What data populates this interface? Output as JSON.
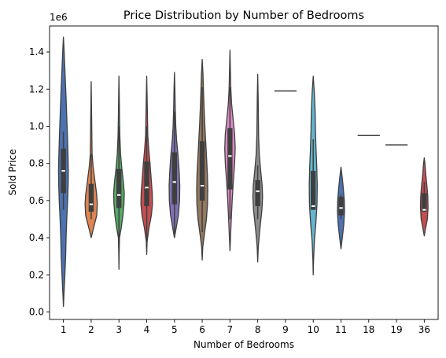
{
  "chart_data": {
    "type": "violin",
    "title": "Price Distribution by Number of Bedrooms",
    "xlabel": "Number of Bedrooms",
    "ylabel": "Sold Price",
    "y_multiplier_label": "1e6",
    "ylim": [
      -0.04,
      1.54
    ],
    "yticks": [
      0.0,
      0.2,
      0.4,
      0.6,
      0.8,
      1.0,
      1.2,
      1.4
    ],
    "ytick_labels": [
      "0.0",
      "0.2",
      "0.4",
      "0.6",
      "0.8",
      "1.0",
      "1.2",
      "1.4"
    ],
    "grid": false,
    "violins": [
      {
        "category": "1",
        "color": "#4C72B0",
        "min": 0.03,
        "max": 1.48,
        "q1": 0.64,
        "median": 0.76,
        "q3": 0.88,
        "whisker_low": 0.55,
        "whisker_high": 0.97,
        "profile": [
          [
            0.03,
            0
          ],
          [
            0.1,
            0.05
          ],
          [
            0.2,
            0.13
          ],
          [
            0.3,
            0.2
          ],
          [
            0.4,
            0.24
          ],
          [
            0.5,
            0.3
          ],
          [
            0.6,
            0.38
          ],
          [
            0.7,
            0.43
          ],
          [
            0.76,
            0.44
          ],
          [
            0.85,
            0.41
          ],
          [
            0.95,
            0.36
          ],
          [
            1.05,
            0.3
          ],
          [
            1.15,
            0.24
          ],
          [
            1.25,
            0.17
          ],
          [
            1.35,
            0.1
          ],
          [
            1.42,
            0.05
          ],
          [
            1.48,
            0
          ]
        ]
      },
      {
        "category": "2",
        "color": "#DD8452",
        "min": 0.4,
        "max": 1.24,
        "q1": 0.54,
        "median": 0.58,
        "q3": 0.69,
        "whisker_low": 0.5,
        "whisker_high": 0.85,
        "profile": [
          [
            0.4,
            0
          ],
          [
            0.45,
            0.2
          ],
          [
            0.52,
            0.5
          ],
          [
            0.58,
            0.55
          ],
          [
            0.63,
            0.5
          ],
          [
            0.7,
            0.35
          ],
          [
            0.78,
            0.18
          ],
          [
            0.85,
            0.08
          ],
          [
            0.95,
            0.06
          ],
          [
            1.05,
            0.04
          ],
          [
            1.15,
            0.02
          ],
          [
            1.24,
            0
          ]
        ]
      },
      {
        "category": "3",
        "color": "#55A868",
        "min": 0.23,
        "max": 1.27,
        "q1": 0.56,
        "median": 0.63,
        "q3": 0.77,
        "whisker_low": 0.38,
        "whisker_high": 1.0,
        "profile": [
          [
            0.23,
            0
          ],
          [
            0.32,
            0.02
          ],
          [
            0.4,
            0.05
          ],
          [
            0.45,
            0.2
          ],
          [
            0.52,
            0.36
          ],
          [
            0.58,
            0.45
          ],
          [
            0.64,
            0.48
          ],
          [
            0.7,
            0.4
          ],
          [
            0.78,
            0.25
          ],
          [
            0.85,
            0.15
          ],
          [
            0.95,
            0.08
          ],
          [
            1.05,
            0.05
          ],
          [
            1.15,
            0.03
          ],
          [
            1.27,
            0
          ]
        ]
      },
      {
        "category": "4",
        "color": "#C44E52",
        "min": 0.31,
        "max": 1.27,
        "q1": 0.57,
        "median": 0.67,
        "q3": 0.81,
        "whisker_low": 0.38,
        "whisker_high": 1.0,
        "profile": [
          [
            0.31,
            0
          ],
          [
            0.38,
            0.04
          ],
          [
            0.45,
            0.2
          ],
          [
            0.52,
            0.42
          ],
          [
            0.58,
            0.52
          ],
          [
            0.64,
            0.5
          ],
          [
            0.72,
            0.4
          ],
          [
            0.8,
            0.3
          ],
          [
            0.88,
            0.18
          ],
          [
            0.95,
            0.1
          ],
          [
            1.05,
            0.07
          ],
          [
            1.15,
            0.04
          ],
          [
            1.27,
            0
          ]
        ]
      },
      {
        "category": "5",
        "color": "#8172B3",
        "min": 0.4,
        "max": 1.29,
        "q1": 0.58,
        "median": 0.7,
        "q3": 0.86,
        "whisker_low": 0.42,
        "whisker_high": 1.08,
        "profile": [
          [
            0.4,
            0
          ],
          [
            0.45,
            0.15
          ],
          [
            0.52,
            0.35
          ],
          [
            0.6,
            0.46
          ],
          [
            0.68,
            0.48
          ],
          [
            0.76,
            0.42
          ],
          [
            0.84,
            0.33
          ],
          [
            0.92,
            0.2
          ],
          [
            1.0,
            0.12
          ],
          [
            1.1,
            0.07
          ],
          [
            1.2,
            0.04
          ],
          [
            1.29,
            0
          ]
        ]
      },
      {
        "category": "6",
        "color": "#937860",
        "min": 0.28,
        "max": 1.36,
        "q1": 0.6,
        "median": 0.68,
        "q3": 0.92,
        "whisker_low": 0.43,
        "whisker_high": 1.21,
        "profile": [
          [
            0.28,
            0
          ],
          [
            0.35,
            0.05
          ],
          [
            0.42,
            0.2
          ],
          [
            0.5,
            0.38
          ],
          [
            0.58,
            0.48
          ],
          [
            0.66,
            0.5
          ],
          [
            0.74,
            0.47
          ],
          [
            0.82,
            0.4
          ],
          [
            0.9,
            0.33
          ],
          [
            1.0,
            0.24
          ],
          [
            1.1,
            0.17
          ],
          [
            1.2,
            0.11
          ],
          [
            1.28,
            0.07
          ],
          [
            1.36,
            0
          ]
        ]
      },
      {
        "category": "7",
        "color": "#DA8BC3",
        "min": 0.33,
        "max": 1.41,
        "q1": 0.66,
        "median": 0.84,
        "q3": 0.99,
        "whisker_low": 0.5,
        "whisker_high": 1.21,
        "profile": [
          [
            0.33,
            0
          ],
          [
            0.4,
            0.05
          ],
          [
            0.5,
            0.12
          ],
          [
            0.6,
            0.2
          ],
          [
            0.7,
            0.3
          ],
          [
            0.8,
            0.42
          ],
          [
            0.88,
            0.47
          ],
          [
            0.96,
            0.42
          ],
          [
            1.04,
            0.28
          ],
          [
            1.12,
            0.15
          ],
          [
            1.2,
            0.08
          ],
          [
            1.3,
            0.04
          ],
          [
            1.41,
            0
          ]
        ]
      },
      {
        "category": "8",
        "color": "#8C8C8C",
        "min": 0.27,
        "max": 1.28,
        "q1": 0.57,
        "median": 0.65,
        "q3": 0.71,
        "whisker_low": 0.5,
        "whisker_high": 0.79,
        "profile": [
          [
            0.27,
            0
          ],
          [
            0.35,
            0.05
          ],
          [
            0.45,
            0.2
          ],
          [
            0.55,
            0.38
          ],
          [
            0.62,
            0.44
          ],
          [
            0.68,
            0.4
          ],
          [
            0.76,
            0.27
          ],
          [
            0.85,
            0.14
          ],
          [
            0.95,
            0.08
          ],
          [
            1.05,
            0.06
          ],
          [
            1.15,
            0.04
          ],
          [
            1.28,
            0
          ]
        ]
      },
      {
        "category": "9",
        "color": "#CCB974",
        "min": 1.19,
        "max": 1.19,
        "q1": 1.19,
        "median": 1.19,
        "q3": 1.19,
        "whisker_low": 1.19,
        "whisker_high": 1.19,
        "single_value": true,
        "profile": []
      },
      {
        "category": "10",
        "color": "#64B5CD",
        "min": 0.2,
        "max": 1.27,
        "q1": 0.55,
        "median": 0.57,
        "q3": 0.76,
        "whisker_low": 0.55,
        "whisker_high": 0.93,
        "profile": [
          [
            0.2,
            0
          ],
          [
            0.28,
            0.03
          ],
          [
            0.38,
            0.1
          ],
          [
            0.48,
            0.24
          ],
          [
            0.58,
            0.34
          ],
          [
            0.68,
            0.36
          ],
          [
            0.78,
            0.32
          ],
          [
            0.88,
            0.25
          ],
          [
            0.98,
            0.2
          ],
          [
            1.08,
            0.17
          ],
          [
            1.18,
            0.1
          ],
          [
            1.27,
            0
          ]
        ]
      },
      {
        "category": "11",
        "color": "#4C72B0",
        "min": 0.34,
        "max": 0.78,
        "q1": 0.52,
        "median": 0.56,
        "q3": 0.62,
        "whisker_low": 0.5,
        "whisker_high": 0.63,
        "profile": [
          [
            0.34,
            0
          ],
          [
            0.4,
            0.12
          ],
          [
            0.47,
            0.25
          ],
          [
            0.54,
            0.32
          ],
          [
            0.6,
            0.3
          ],
          [
            0.66,
            0.22
          ],
          [
            0.72,
            0.12
          ],
          [
            0.78,
            0
          ]
        ]
      },
      {
        "category": "18",
        "color": "#DD8452",
        "min": 0.95,
        "max": 0.95,
        "q1": 0.95,
        "median": 0.95,
        "q3": 0.95,
        "whisker_low": 0.95,
        "whisker_high": 0.95,
        "single_value": true,
        "profile": []
      },
      {
        "category": "19",
        "color": "#55A868",
        "min": 0.9,
        "max": 0.9,
        "q1": 0.9,
        "median": 0.9,
        "q3": 0.9,
        "whisker_low": 0.9,
        "whisker_high": 0.9,
        "single_value": true,
        "profile": []
      },
      {
        "category": "36",
        "color": "#C44E52",
        "min": 0.41,
        "max": 0.83,
        "q1": 0.54,
        "median": 0.55,
        "q3": 0.64,
        "whisker_low": 0.54,
        "whisker_high": 0.7,
        "profile": [
          [
            0.41,
            0
          ],
          [
            0.45,
            0.12
          ],
          [
            0.5,
            0.28
          ],
          [
            0.56,
            0.34
          ],
          [
            0.62,
            0.32
          ],
          [
            0.68,
            0.24
          ],
          [
            0.74,
            0.14
          ],
          [
            0.8,
            0.06
          ],
          [
            0.83,
            0
          ]
        ]
      }
    ]
  }
}
